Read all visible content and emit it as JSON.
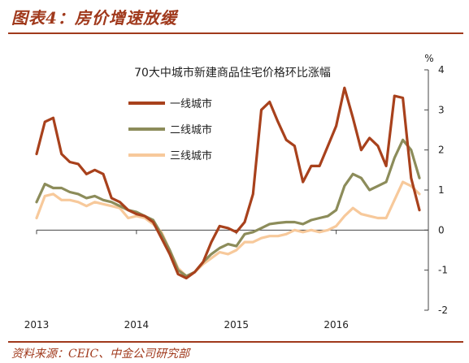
{
  "figure": {
    "title": "图表4：房价增速放缓",
    "source": "资料来源：CEIC、中金公司研究部"
  },
  "chart_data": {
    "type": "line",
    "title": "70大中城市新建商品住宅价格环比涨幅",
    "y_unit": "%",
    "ylim": [
      -2,
      4
    ],
    "yticks": [
      -2,
      -1,
      0,
      1,
      2,
      3,
      4
    ],
    "y_axis_side": "right",
    "x_tick_labels": [
      "2013",
      "2014",
      "2015",
      "2016"
    ],
    "x_tick_positions": [
      2013.0,
      2014.0,
      2015.0,
      2016.0
    ],
    "x": [
      2013.0,
      2013.083,
      2013.167,
      2013.25,
      2013.333,
      2013.417,
      2013.5,
      2013.583,
      2013.667,
      2013.75,
      2013.833,
      2013.917,
      2014.0,
      2014.083,
      2014.167,
      2014.25,
      2014.333,
      2014.417,
      2014.5,
      2014.583,
      2014.667,
      2014.75,
      2014.833,
      2014.917,
      2015.0,
      2015.083,
      2015.167,
      2015.25,
      2015.333,
      2015.417,
      2015.5,
      2015.583,
      2015.667,
      2015.75,
      2015.833,
      2015.917,
      2016.0,
      2016.083,
      2016.167,
      2016.25,
      2016.333,
      2016.417,
      2016.5,
      2016.583,
      2016.667,
      2016.75,
      2016.833
    ],
    "series": [
      {
        "name": "一线城市",
        "color": "#a8411c",
        "values": [
          1.9,
          2.7,
          2.8,
          1.9,
          1.7,
          1.65,
          1.4,
          1.5,
          1.4,
          0.8,
          0.7,
          0.5,
          0.4,
          0.35,
          0.2,
          -0.2,
          -0.6,
          -1.1,
          -1.2,
          -1.05,
          -0.8,
          -0.3,
          0.1,
          0.05,
          -0.05,
          0.2,
          0.9,
          3.0,
          3.2,
          2.7,
          2.25,
          2.1,
          1.2,
          1.6,
          1.6,
          2.1,
          2.6,
          3.55,
          2.8,
          2.0,
          2.3,
          2.1,
          1.6,
          3.35,
          3.3,
          1.3,
          0.5
        ]
      },
      {
        "name": "二线城市",
        "color": "#8c8c5a",
        "values": [
          0.7,
          1.15,
          1.05,
          1.05,
          0.95,
          0.9,
          0.8,
          0.85,
          0.75,
          0.7,
          0.6,
          0.5,
          0.45,
          0.35,
          0.25,
          -0.1,
          -0.5,
          -1.0,
          -1.15,
          -1.05,
          -0.8,
          -0.6,
          -0.45,
          -0.35,
          -0.4,
          -0.1,
          -0.05,
          0.05,
          0.15,
          0.18,
          0.2,
          0.2,
          0.15,
          0.25,
          0.3,
          0.35,
          0.5,
          1.1,
          1.4,
          1.3,
          1.0,
          1.1,
          1.2,
          1.8,
          2.25,
          2.0,
          1.3
        ]
      },
      {
        "name": "三线城市",
        "color": "#f7c99b",
        "values": [
          0.3,
          0.85,
          0.9,
          0.75,
          0.75,
          0.7,
          0.6,
          0.7,
          0.65,
          0.6,
          0.55,
          0.3,
          0.35,
          0.3,
          0.15,
          -0.05,
          -0.5,
          -0.95,
          -1.15,
          -1.05,
          -0.85,
          -0.7,
          -0.55,
          -0.6,
          -0.5,
          -0.3,
          -0.3,
          -0.2,
          -0.15,
          -0.15,
          -0.1,
          0.0,
          -0.05,
          0.0,
          -0.05,
          0.0,
          0.1,
          0.35,
          0.55,
          0.4,
          0.35,
          0.3,
          0.3,
          0.75,
          1.2,
          1.1,
          0.9
        ]
      }
    ],
    "legend_position": "top-left",
    "grid": false
  }
}
